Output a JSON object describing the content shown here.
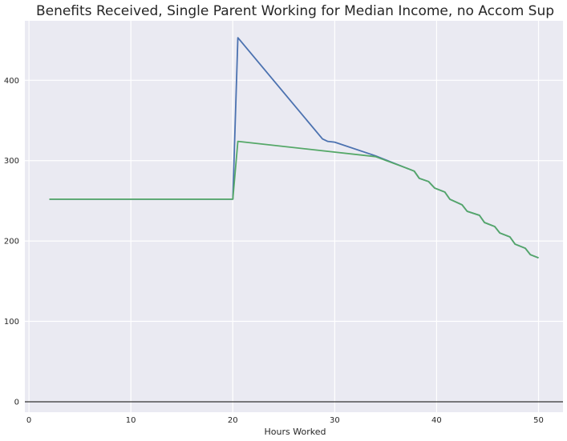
{
  "chart_data": {
    "type": "line",
    "title": "Benefits Received, Single Parent Working for Median Income, no Accom Sup",
    "xlabel": "Hours Worked",
    "ylabel": "",
    "xlim": [
      -0.4,
      52.4
    ],
    "ylim": [
      -13,
      474
    ],
    "xticks": [
      0,
      10,
      20,
      30,
      40,
      50
    ],
    "yticks": [
      0,
      100,
      200,
      300,
      400
    ],
    "grid": true,
    "zero_line": true,
    "series": [
      {
        "color": "#4C72B0",
        "x": [
          2,
          20,
          20.5,
          28.8,
          29.3,
          30.0,
          34.0,
          37.0,
          37.8,
          38.3,
          39.2,
          39.8,
          40.8,
          41.3,
          42.5,
          43.0,
          44.2,
          44.7,
          45.7,
          46.2,
          47.2,
          47.7,
          48.7,
          49.2,
          50.0
        ],
        "y": [
          252,
          252,
          453,
          327,
          324,
          323,
          306,
          291,
          287,
          278,
          274,
          266,
          261,
          252,
          245,
          237,
          232,
          223,
          218,
          210,
          205,
          196,
          191,
          183,
          179
        ]
      },
      {
        "color": "#55A868",
        "x": [
          2,
          20,
          20.5,
          34.0,
          37.0,
          37.8,
          38.3,
          39.2,
          39.8,
          40.8,
          41.3,
          42.5,
          43.0,
          44.2,
          44.7,
          45.7,
          46.2,
          47.2,
          47.7,
          48.7,
          49.2,
          50.0
        ],
        "y": [
          252,
          252,
          324,
          305,
          291,
          287,
          278,
          274,
          266,
          261,
          252,
          245,
          237,
          232,
          223,
          218,
          210,
          205,
          196,
          191,
          183,
          179
        ]
      }
    ]
  }
}
